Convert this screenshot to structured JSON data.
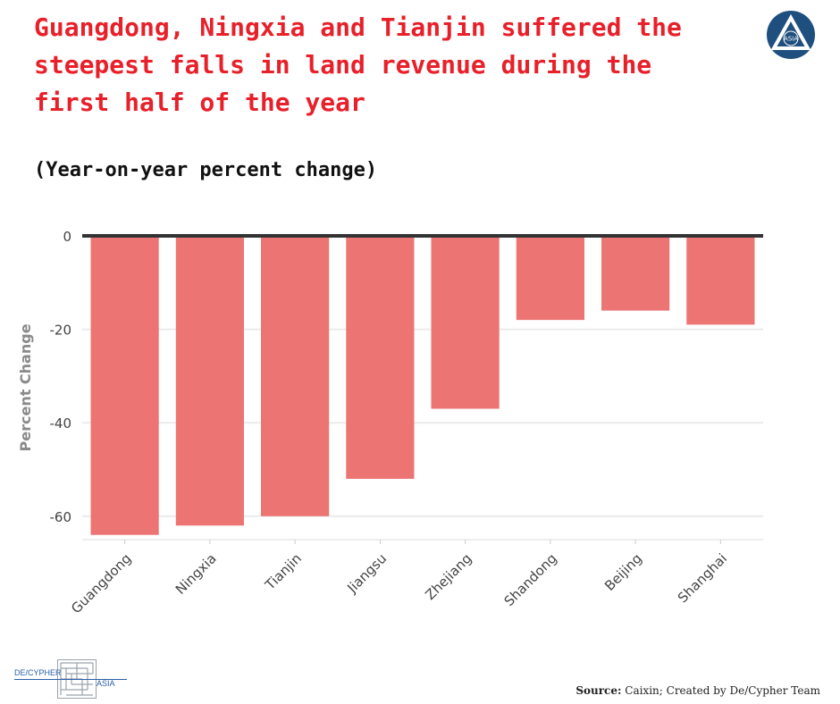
{
  "title": "Guangdong, Ningxia and Tianjin suffered the steepest falls in land revenue during the first half of the year",
  "subtitle": "(Year-on-year percent change)",
  "source_label": "Source:",
  "source_text": "Caixin; Created by De/Cypher Team",
  "logo_top_text": "ASIA",
  "logo_bottom": {
    "left": "DE/CYPHER",
    "right": "ASIA"
  },
  "colors": {
    "title": "#e8202a",
    "bar": "#ec7473",
    "zero_line": "#333333",
    "grid": "#ebebeb"
  },
  "chart_data": {
    "type": "bar",
    "categories": [
      "Guangdong",
      "Ningxia",
      "Tianjin",
      "Jiangsu",
      "Zhejiang",
      "Shandong",
      "Beijing",
      "Shanghai"
    ],
    "values": [
      -64,
      -62,
      -60,
      -52,
      -37,
      -18,
      -16,
      -19
    ],
    "ylabel": "Percent Change",
    "xlabel": "",
    "ylim": [
      -65,
      0
    ],
    "yticks": [
      0,
      -20,
      -40,
      -60
    ],
    "ytick_labels": [
      "0",
      "-20",
      "-40",
      "-60"
    ],
    "grid": true
  }
}
